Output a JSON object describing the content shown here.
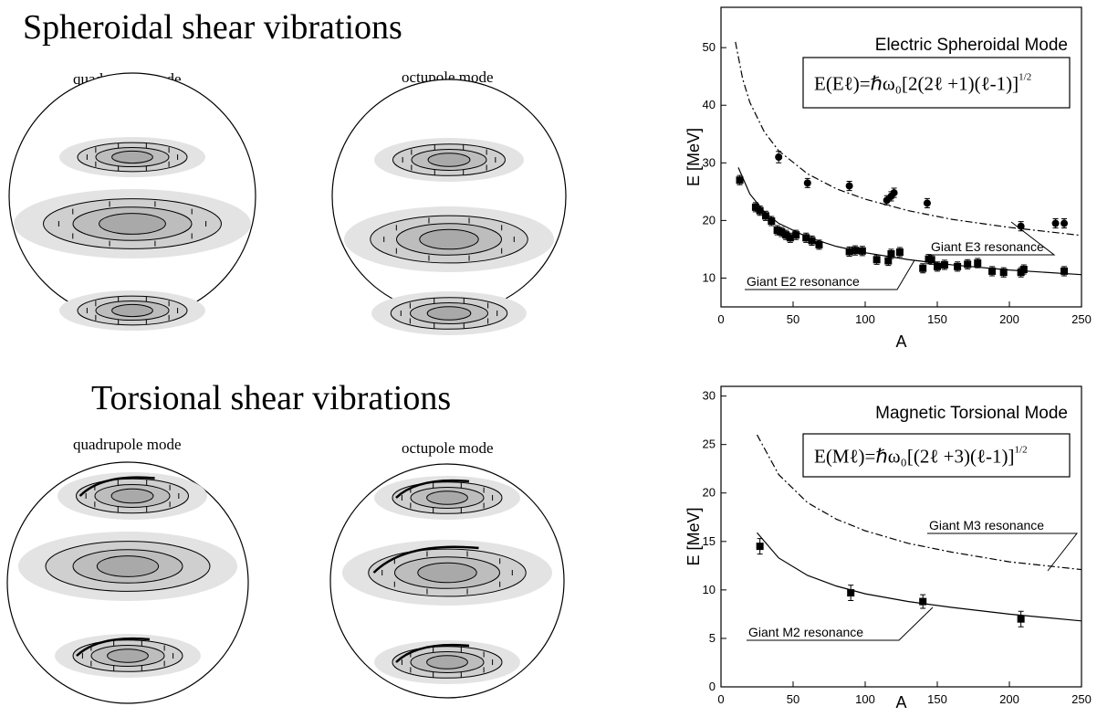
{
  "diagrams": {
    "spheroidal_title": "Spheroidal shear vibrations",
    "torsional_title": "Torsional shear vibrations",
    "spheroidal_labels": [
      "quadrupole mode",
      "octupole mode"
    ],
    "torsional_labels": [
      "quadrupole mode",
      "octupole mode"
    ]
  },
  "chart_data": [
    {
      "type": "scatter",
      "title": "Electric Spheroidal Mode",
      "formula": "E(Eℓ)=ℏω₀[2(2ℓ +1)(ℓ-1)]",
      "formula_exponent": "1/2",
      "x_label": "A",
      "y_label": "E [MeV]",
      "xlim": [
        0,
        250
      ],
      "xticks": [
        0,
        50,
        100,
        150,
        200,
        250
      ],
      "ylim": [
        5,
        57
      ],
      "yticks": [
        10,
        20,
        30,
        40,
        50
      ],
      "color": "#000000",
      "annotations": [
        "Giant E3 resonance",
        "Giant E2 resonance"
      ],
      "data_points": [
        {
          "marker": "circle",
          "x": [
            40,
            60,
            89,
            115,
            118,
            120,
            143,
            208,
            232,
            238
          ],
          "values": [
            31,
            26.5,
            26,
            23.5,
            24.2,
            24.8,
            23,
            19,
            19.5,
            19.5
          ],
          "errors": [
            1,
            0.8,
            0.8,
            0.8,
            0.8,
            0.8,
            0.8,
            0.8,
            0.8,
            0.8
          ]
        },
        {
          "marker": "square",
          "x": [
            13,
            24,
            27,
            31,
            35,
            39,
            42,
            45,
            48,
            52,
            59,
            63,
            68,
            89,
            93,
            98,
            108,
            116,
            118,
            124,
            140,
            144,
            146,
            150,
            155,
            164,
            171,
            178,
            188,
            196,
            208,
            210,
            238
          ],
          "values": [
            27,
            22.3,
            21.7,
            20.8,
            19.9,
            18.3,
            18,
            17.5,
            17,
            17.5,
            17,
            16.5,
            15.8,
            14.6,
            14.8,
            14.7,
            13.2,
            13,
            14.2,
            14.5,
            11.7,
            13.3,
            13.2,
            12,
            12.3,
            12,
            12.4,
            12.6,
            11.2,
            11,
            11,
            11.5,
            11.2
          ],
          "errors": [
            0.8,
            0.8,
            0.8,
            0.8,
            0.8,
            0.8,
            0.8,
            0.8,
            0.8,
            0.8,
            0.8,
            0.8,
            0.8,
            0.8,
            0.8,
            0.8,
            0.8,
            0.8,
            0.8,
            0.8,
            0.8,
            0.8,
            0.8,
            0.8,
            0.8,
            0.8,
            0.8,
            0.8,
            0.8,
            0.8,
            0.8,
            0.8,
            0.8
          ]
        }
      ],
      "fit_curves": [
        {
          "dash": "dashdot",
          "x": [
            10,
            15,
            20,
            30,
            40,
            60,
            80,
            100,
            130,
            160,
            200,
            250
          ],
          "values": [
            51,
            44.6,
            40.5,
            35.4,
            32.1,
            28.1,
            25.5,
            23.7,
            21.7,
            20.2,
            18.8,
            17.4
          ]
        },
        {
          "dash": "solid",
          "x": [
            12,
            20,
            30,
            40,
            60,
            80,
            100,
            130,
            160,
            200,
            250
          ],
          "values": [
            29.2,
            24.6,
            21.5,
            19.5,
            17.1,
            15.5,
            14.4,
            13.2,
            12.3,
            11.4,
            10.6
          ]
        }
      ]
    },
    {
      "type": "scatter",
      "title": "Magnetic Torsional Mode",
      "formula": "E(Mℓ)=ℏω₀[(2ℓ +3)(ℓ-1)]",
      "formula_exponent": "1/2",
      "x_label": "A",
      "y_label": "E [MeV]",
      "xlim": [
        0,
        250
      ],
      "xticks": [
        0,
        50,
        100,
        150,
        200,
        250
      ],
      "ylim": [
        0,
        31
      ],
      "yticks": [
        0,
        5,
        10,
        15,
        20,
        25,
        30
      ],
      "color": "#000000",
      "annotations": [
        "Giant M3 resonance",
        "Giant M2 resonance"
      ],
      "data_points": [
        {
          "marker": "square",
          "x": [
            27,
            90,
            140,
            208
          ],
          "values": [
            14.5,
            9.7,
            8.8,
            7
          ],
          "errors": [
            0.8,
            0.8,
            0.7,
            0.8
          ]
        }
      ],
      "fit_curves": [
        {
          "dash": "dashdot",
          "x": [
            25,
            40,
            60,
            80,
            100,
            130,
            160,
            200,
            250
          ],
          "values": [
            26,
            21.9,
            19,
            17.3,
            16.1,
            14.8,
            13.9,
            12.9,
            12.1
          ]
        },
        {
          "dash": "solid",
          "x": [
            25,
            40,
            60,
            80,
            100,
            130,
            160,
            200,
            250
          ],
          "values": [
            15.9,
            13.3,
            11.5,
            10.4,
            9.6,
            8.8,
            8.2,
            7.5,
            6.8
          ]
        }
      ]
    }
  ]
}
